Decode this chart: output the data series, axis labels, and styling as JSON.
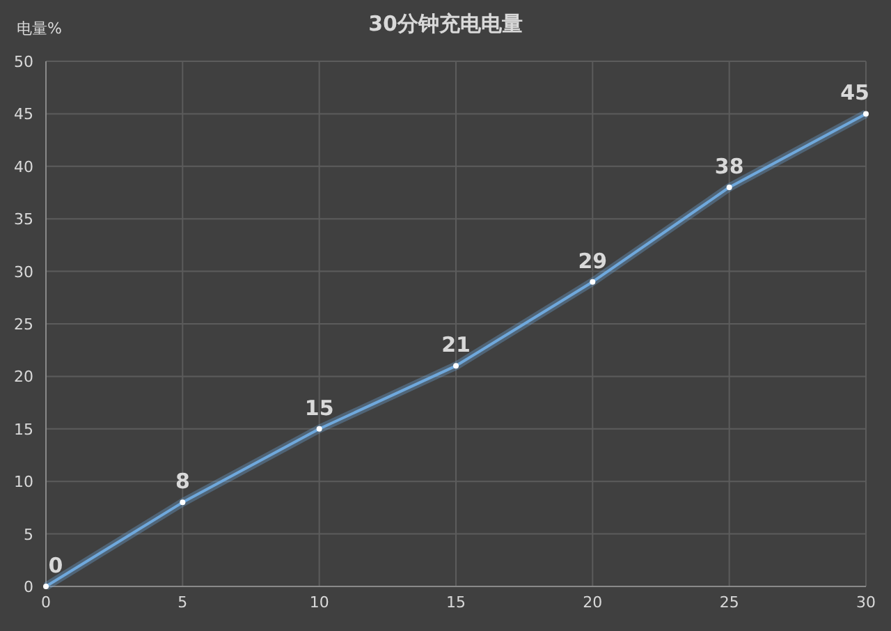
{
  "chart_data": {
    "type": "line",
    "title": "30分钟充电电量",
    "ylabel": "电量%",
    "x": [
      0,
      5,
      10,
      15,
      20,
      25,
      30
    ],
    "series": [
      {
        "color": "#6fa8dc",
        "values": [
          0,
          8,
          15,
          21,
          29,
          38,
          45
        ]
      }
    ],
    "xlim": [
      0,
      30
    ],
    "xticks": [
      0,
      5,
      10,
      15,
      20,
      25,
      30
    ],
    "ylim": [
      0,
      50
    ],
    "yticks": [
      0,
      5,
      10,
      15,
      20,
      25,
      30,
      35,
      40,
      45,
      50
    ],
    "grid": true,
    "data_labels": true,
    "marker": "circle",
    "line_style": "solid"
  }
}
